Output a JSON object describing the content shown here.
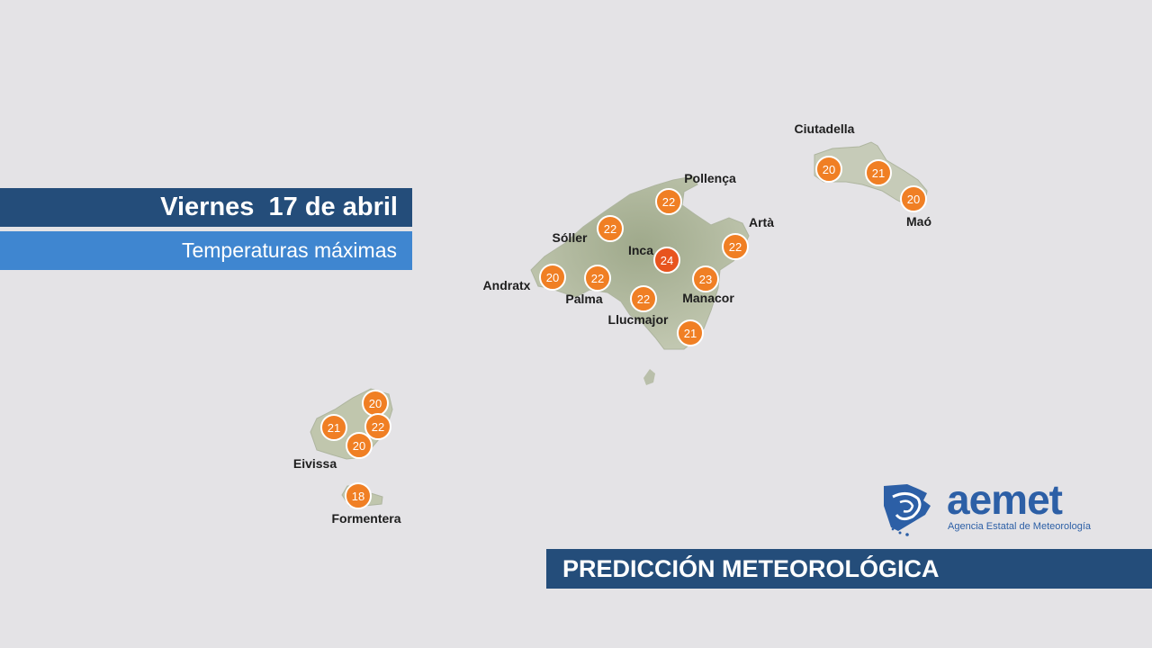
{
  "header": {
    "title": "Viernes  17 de abril",
    "subtitle": "Temperaturas máximas"
  },
  "footer": {
    "label": "PREDICCIÓN METEOROLÓGICA"
  },
  "logo": {
    "name": "aemet",
    "tagline": "Agencia Estatal de Meteorología",
    "icon": "aemet-logo-icon"
  },
  "colors": {
    "background": "#e4e3e6",
    "land": "#b7bfa5",
    "title_bar": "#244d7a",
    "subtitle_bar": "#3f86d0",
    "marker": "#f07f24",
    "marker_max": "#e8541e",
    "logo": "#2c5fa6"
  },
  "places": [
    {
      "name": "Ciutadella"
    },
    {
      "name": "Maó"
    },
    {
      "name": "Pollença"
    },
    {
      "name": "Artà"
    },
    {
      "name": "Sóller"
    },
    {
      "name": "Inca"
    },
    {
      "name": "Andratx"
    },
    {
      "name": "Palma"
    },
    {
      "name": "Manacor"
    },
    {
      "name": "Llucmajor"
    },
    {
      "name": "Eivissa"
    },
    {
      "name": "Formentera"
    }
  ],
  "temperatures": [
    {
      "value": "20",
      "max": false
    },
    {
      "value": "21",
      "max": false
    },
    {
      "value": "20",
      "max": false
    },
    {
      "value": "22",
      "max": false
    },
    {
      "value": "22",
      "max": false
    },
    {
      "value": "22",
      "max": false
    },
    {
      "value": "24",
      "max": true
    },
    {
      "value": "20",
      "max": false
    },
    {
      "value": "22",
      "max": false
    },
    {
      "value": "23",
      "max": false
    },
    {
      "value": "22",
      "max": false
    },
    {
      "value": "21",
      "max": false
    },
    {
      "value": "20",
      "max": false
    },
    {
      "value": "21",
      "max": false
    },
    {
      "value": "22",
      "max": false
    },
    {
      "value": "20",
      "max": false
    },
    {
      "value": "18",
      "max": false
    }
  ]
}
